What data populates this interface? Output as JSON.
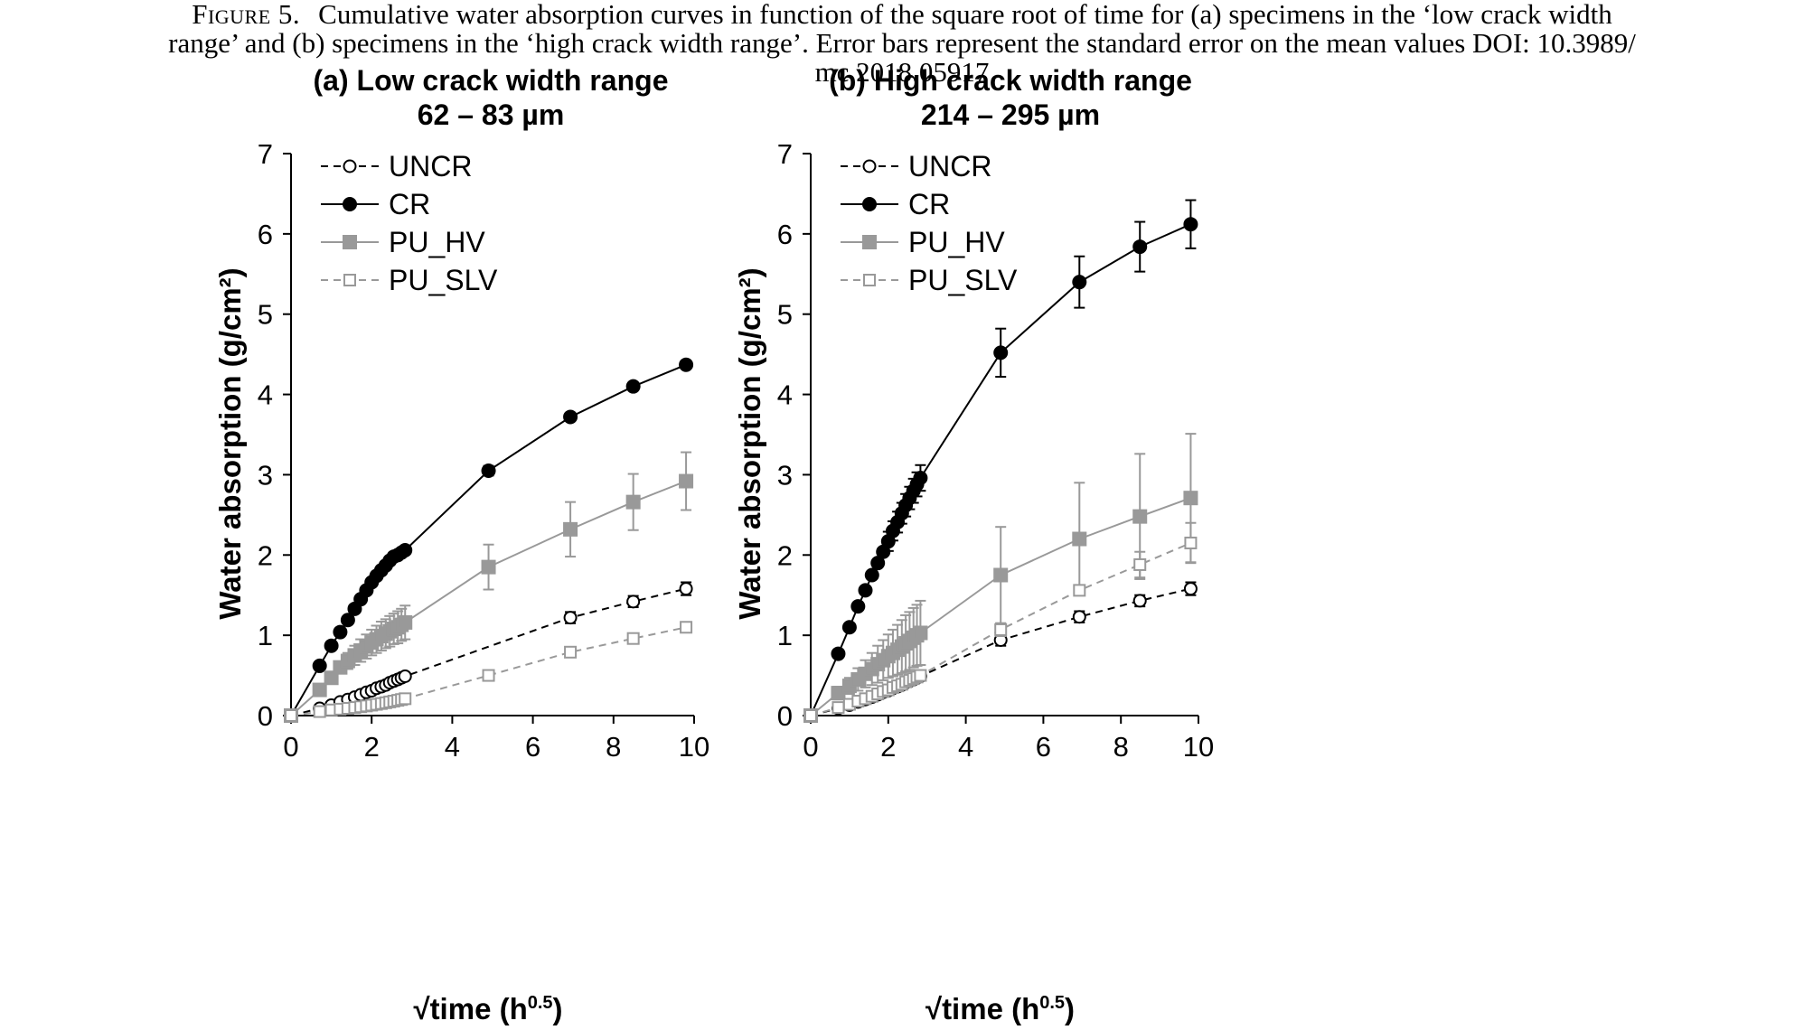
{
  "caption": {
    "label": "Figure 5.",
    "line1": "Cumulative water absorption curves in function of the square root of time for (a) specimens in the ‘low crack width",
    "line2": "range’ and (b) specimens in the ‘high crack width range’. Error bars represent the standard error on the mean values DOI: 10.3989/",
    "line3": "mc.2018.05917"
  },
  "chart_data": [
    {
      "type": "line",
      "title": "(a) Low crack width range",
      "subtitle": "62 – 83 µm",
      "xlabel": "√time (h",
      "xlabel_sup": "0.5",
      "xlabel_end": ")",
      "ylabel": "Water absorption (g/cm²)",
      "xlim": [
        0,
        10
      ],
      "ylim": [
        0,
        7
      ],
      "xticks": [
        0,
        2,
        4,
        6,
        8,
        10
      ],
      "yticks": [
        0,
        1,
        2,
        3,
        4,
        5,
        6,
        7
      ],
      "grid": false,
      "legend_position": "top-left",
      "series": [
        {
          "name": "UNCR",
          "color": "#000000",
          "dash": "dashed",
          "marker": "open-circle",
          "x": [
            0,
            0.71,
            1.0,
            1.22,
            1.41,
            1.58,
            1.73,
            1.87,
            2.0,
            2.12,
            2.24,
            2.35,
            2.45,
            2.55,
            2.65,
            2.74,
            2.83,
            6.93,
            8.49,
            9.8
          ],
          "y": [
            0,
            0.09,
            0.13,
            0.17,
            0.2,
            0.23,
            0.26,
            0.29,
            0.31,
            0.34,
            0.36,
            0.38,
            0.41,
            0.43,
            0.45,
            0.47,
            0.49,
            1.22,
            1.42,
            1.58
          ],
          "err": [
            0,
            0,
            0,
            0,
            0,
            0,
            0,
            0,
            0,
            0,
            0,
            0,
            0,
            0,
            0,
            0,
            0.02,
            0.07,
            0.07,
            0.08
          ]
        },
        {
          "name": "CR",
          "color": "#000000",
          "dash": "solid",
          "marker": "filled-circle",
          "x": [
            0,
            0.71,
            1.0,
            1.22,
            1.41,
            1.58,
            1.73,
            1.87,
            2.0,
            2.12,
            2.24,
            2.35,
            2.45,
            2.55,
            2.65,
            2.74,
            2.83,
            4.9,
            6.93,
            8.49,
            9.8
          ],
          "y": [
            0,
            0.62,
            0.87,
            1.04,
            1.19,
            1.33,
            1.45,
            1.56,
            1.66,
            1.74,
            1.81,
            1.87,
            1.93,
            1.98,
            2.0,
            2.03,
            2.06,
            3.05,
            3.72,
            4.1,
            4.37
          ],
          "err": [
            0,
            0,
            0,
            0,
            0,
            0,
            0,
            0,
            0,
            0,
            0,
            0,
            0,
            0,
            0,
            0,
            0.03,
            0.06,
            0.03,
            0.02,
            0.02
          ]
        },
        {
          "name": "PU_HV",
          "color": "#999999",
          "dash": "solid",
          "marker": "filled-square",
          "x": [
            0,
            0.71,
            1.0,
            1.22,
            1.41,
            1.58,
            1.73,
            1.87,
            2.0,
            2.12,
            2.24,
            2.35,
            2.45,
            2.55,
            2.65,
            2.74,
            2.83,
            4.9,
            6.93,
            8.49,
            9.8
          ],
          "y": [
            0,
            0.32,
            0.47,
            0.6,
            0.68,
            0.75,
            0.81,
            0.86,
            0.91,
            0.95,
            0.99,
            1.02,
            1.05,
            1.08,
            1.1,
            1.13,
            1.16,
            1.85,
            2.32,
            2.66,
            2.92
          ],
          "err": [
            0,
            0,
            0,
            0,
            0.1,
            0.12,
            0.14,
            0.15,
            0.16,
            0.17,
            0.18,
            0.18,
            0.19,
            0.19,
            0.2,
            0.2,
            0.21,
            0.28,
            0.34,
            0.35,
            0.36
          ]
        },
        {
          "name": "PU_SLV",
          "color": "#999999",
          "dash": "dashed",
          "marker": "open-square",
          "x": [
            0,
            0.71,
            1.0,
            1.22,
            1.41,
            1.58,
            1.73,
            1.87,
            2.0,
            2.12,
            2.24,
            2.35,
            2.45,
            2.55,
            2.65,
            2.74,
            2.83,
            4.9,
            6.93,
            8.49,
            9.8
          ],
          "y": [
            0,
            0.05,
            0.07,
            0.08,
            0.09,
            0.1,
            0.11,
            0.12,
            0.13,
            0.14,
            0.15,
            0.16,
            0.17,
            0.18,
            0.19,
            0.2,
            0.21,
            0.5,
            0.79,
            0.96,
            1.1
          ],
          "err": [
            0,
            0,
            0,
            0,
            0,
            0,
            0,
            0,
            0,
            0,
            0,
            0,
            0,
            0,
            0,
            0,
            0.02,
            0.03,
            0.04,
            0.04,
            0.04
          ]
        }
      ]
    },
    {
      "type": "line",
      "title": "(b) High crack width range",
      "subtitle": "214 – 295 µm",
      "xlabel": "√time (h",
      "xlabel_sup": "0.5",
      "xlabel_end": ")",
      "ylabel": "Water absorption (g/cm²)",
      "xlim": [
        0,
        10
      ],
      "ylim": [
        0,
        7
      ],
      "xticks": [
        0,
        2,
        4,
        6,
        8,
        10
      ],
      "yticks": [
        0,
        1,
        2,
        3,
        4,
        5,
        6,
        7
      ],
      "grid": false,
      "legend_position": "top-left",
      "series": [
        {
          "name": "UNCR",
          "color": "#000000",
          "dash": "dashed",
          "marker": "open-circle",
          "x": [
            0,
            0.71,
            1.0,
            1.22,
            1.41,
            1.58,
            1.73,
            1.87,
            2.0,
            2.12,
            2.24,
            2.35,
            2.45,
            2.55,
            2.65,
            2.74,
            2.83,
            4.9,
            6.93,
            8.49,
            9.8
          ],
          "y": [
            0,
            0.09,
            0.13,
            0.17,
            0.2,
            0.23,
            0.26,
            0.29,
            0.31,
            0.34,
            0.36,
            0.38,
            0.41,
            0.43,
            0.45,
            0.47,
            0.49,
            0.94,
            1.23,
            1.43,
            1.58
          ],
          "err": [
            0,
            0,
            0,
            0,
            0,
            0,
            0,
            0,
            0,
            0,
            0,
            0,
            0,
            0,
            0,
            0,
            0.03,
            0.07,
            0.07,
            0.07,
            0.08
          ]
        },
        {
          "name": "CR",
          "color": "#000000",
          "dash": "solid",
          "marker": "filled-circle",
          "x": [
            0,
            0.71,
            1.0,
            1.22,
            1.41,
            1.58,
            1.73,
            1.87,
            2.0,
            2.12,
            2.24,
            2.35,
            2.45,
            2.55,
            2.65,
            2.74,
            2.83,
            4.9,
            6.93,
            8.49,
            9.8
          ],
          "y": [
            0,
            0.77,
            1.1,
            1.36,
            1.56,
            1.75,
            1.9,
            2.04,
            2.17,
            2.3,
            2.41,
            2.52,
            2.62,
            2.71,
            2.8,
            2.88,
            2.96,
            4.52,
            5.4,
            5.84,
            6.12
          ],
          "err": [
            0,
            0,
            0,
            0,
            0,
            0,
            0,
            0,
            0.12,
            0.12,
            0.13,
            0.13,
            0.14,
            0.14,
            0.15,
            0.15,
            0.16,
            0.3,
            0.32,
            0.31,
            0.3
          ]
        },
        {
          "name": "PU_HV",
          "color": "#999999",
          "dash": "solid",
          "marker": "filled-square",
          "x": [
            0,
            0.71,
            1.0,
            1.22,
            1.41,
            1.58,
            1.73,
            1.87,
            2.0,
            2.12,
            2.24,
            2.35,
            2.45,
            2.55,
            2.65,
            2.74,
            2.83,
            4.9,
            6.93,
            8.49,
            9.8
          ],
          "y": [
            0,
            0.28,
            0.37,
            0.45,
            0.52,
            0.58,
            0.64,
            0.69,
            0.74,
            0.78,
            0.82,
            0.86,
            0.9,
            0.93,
            0.97,
            1.0,
            1.03,
            1.75,
            2.2,
            2.48,
            2.71
          ],
          "err": [
            0,
            0.08,
            0.1,
            0.14,
            0.17,
            0.2,
            0.23,
            0.25,
            0.27,
            0.29,
            0.31,
            0.33,
            0.35,
            0.36,
            0.37,
            0.38,
            0.4,
            0.6,
            0.7,
            0.78,
            0.8
          ]
        },
        {
          "name": "PU_SLV",
          "color": "#999999",
          "dash": "dashed",
          "marker": "open-square",
          "x": [
            0,
            0.71,
            1.0,
            1.22,
            1.41,
            1.58,
            1.73,
            1.87,
            2.0,
            2.12,
            2.24,
            2.35,
            2.45,
            2.55,
            2.65,
            2.74,
            2.83,
            4.9,
            6.93,
            8.49,
            9.8
          ],
          "y": [
            0,
            0.1,
            0.14,
            0.18,
            0.21,
            0.24,
            0.27,
            0.3,
            0.32,
            0.35,
            0.37,
            0.39,
            0.42,
            0.44,
            0.46,
            0.48,
            0.5,
            1.07,
            1.56,
            1.88,
            2.15
          ],
          "err": [
            0,
            0,
            0,
            0,
            0,
            0,
            0,
            0,
            0,
            0,
            0,
            0,
            0,
            0,
            0,
            0,
            0.03,
            0.08,
            0.06,
            0.16,
            0.25
          ]
        }
      ]
    }
  ]
}
